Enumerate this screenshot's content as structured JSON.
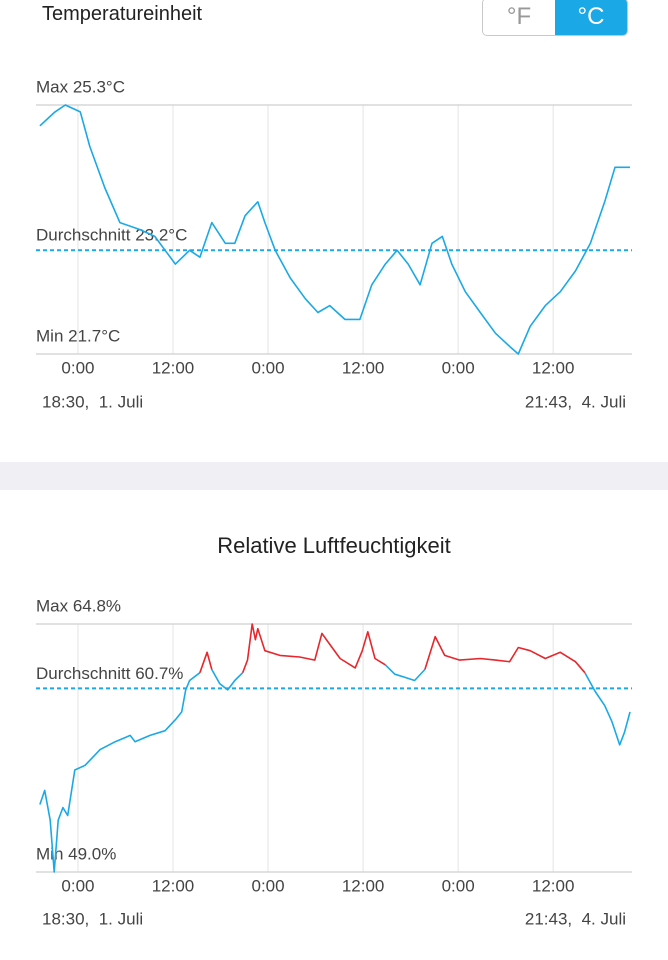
{
  "settings": {
    "label": "Temperatureinheit",
    "options": [
      "°F",
      "°C"
    ],
    "selected": "°C"
  },
  "chart_data": [
    {
      "type": "line",
      "color": "#1aa9e6",
      "x": [
        0.7,
        2.6,
        3.9,
        5.8,
        7.0,
        8.9,
        10.8,
        13.3,
        15.2,
        16.5,
        17.8,
        19.6,
        20.9,
        22.4,
        24.1,
        25.3,
        26.6,
        28.2,
        29.1,
        30.4,
        32.3,
        34.2,
        35.8,
        37.3,
        39.2,
        41.1,
        42.6,
        44.3,
        45.8,
        47.2,
        48.7,
        50.2,
        51.5,
        52.7,
        54.4,
        56.3,
        58.2,
        60.1,
        61.1,
        62.6,
        64.5,
        66.4,
        68.3,
        70.2,
        72.0,
        73.3,
        75.2
      ],
      "values": [
        25.0,
        25.2,
        25.3,
        25.2,
        24.7,
        24.1,
        23.6,
        23.5,
        23.4,
        23.2,
        23.0,
        23.2,
        23.1,
        23.6,
        23.3,
        23.3,
        23.7,
        23.9,
        23.6,
        23.2,
        22.8,
        22.5,
        22.3,
        22.4,
        22.2,
        22.2,
        22.7,
        23.0,
        23.2,
        23.0,
        22.7,
        23.3,
        23.4,
        23.0,
        22.6,
        22.3,
        22.0,
        21.8,
        21.7,
        22.1,
        22.4,
        22.6,
        22.9,
        23.3,
        23.9,
        24.4,
        24.4
      ],
      "xlim": [
        0,
        75.2
      ],
      "xticks": [
        {
          "value": 5.5,
          "label": "0:00"
        },
        {
          "value": 17.5,
          "label": "12:00"
        },
        {
          "value": 29.5,
          "label": "0:00"
        },
        {
          "value": 41.5,
          "label": "12:00"
        },
        {
          "value": 53.5,
          "label": "0:00"
        },
        {
          "value": 65.5,
          "label": "12:00"
        }
      ],
      "ylim": [
        21.7,
        25.3
      ],
      "yticks": [
        {
          "value": 25.3,
          "label": "Max 25.3°C"
        },
        {
          "value": 21.7,
          "label": "Min 21.7°C"
        }
      ],
      "average": {
        "value": 23.2,
        "label": "Durchschnitt 23.2°C"
      },
      "range_labels": [
        "18:30,  1. Juli",
        "21:43,  4. Juli"
      ]
    },
    {
      "type": "line",
      "title": "Relative Luftfeuchtigkeit",
      "x": [
        0.7,
        1.3,
        2.0,
        2.5,
        3.0,
        3.6,
        4.2,
        5.1,
        6.4,
        8.3,
        10.2,
        12.1,
        12.7,
        14.6,
        16.5,
        17.8,
        18.6,
        19.1,
        19.6,
        20.9,
        21.8,
        22.4,
        23.4,
        24.4,
        25.3,
        26.3,
        26.9,
        27.5,
        27.9,
        28.2,
        29.1,
        31.0,
        33.5,
        35.4,
        36.3,
        37.3,
        38.6,
        40.5,
        41.4,
        42.1,
        43.0,
        44.3,
        45.5,
        46.8,
        48.0,
        49.3,
        50.6,
        51.8,
        53.7,
        56.3,
        58.2,
        60.0,
        61.1,
        62.6,
        64.5,
        66.4,
        68.3,
        69.5,
        70.8,
        72.0,
        72.9,
        73.9,
        74.5,
        75.2
      ],
      "series": [
        {
          "color": "#1aa9e6",
          "values": [
            53.3,
            54.2,
            52.3,
            49.0,
            52.3,
            53.1,
            52.6,
            55.5,
            55.8,
            56.8,
            57.3,
            57.7,
            57.3,
            57.7,
            58.0,
            58.7,
            59.2,
            60.6,
            61.2,
            61.7,
            null,
            61.9,
            61.0,
            60.6,
            61.2,
            61.7,
            null,
            null,
            null,
            null,
            null,
            null,
            null,
            null,
            null,
            null,
            null,
            null,
            null,
            null,
            null,
            62.2,
            61.6,
            61.4,
            61.2,
            61.9,
            null,
            null,
            null,
            null,
            null,
            null,
            null,
            null,
            null,
            null,
            null,
            61.7,
            60.5,
            59.6,
            58.6,
            57.1,
            57.9,
            59.2
          ]
        },
        {
          "color": "#e8262b",
          "values": [
            null,
            null,
            null,
            null,
            null,
            null,
            null,
            null,
            null,
            null,
            null,
            null,
            null,
            null,
            null,
            null,
            null,
            null,
            null,
            61.7,
            63.0,
            61.9,
            null,
            null,
            null,
            61.7,
            62.5,
            64.8,
            63.8,
            64.5,
            63.1,
            62.8,
            62.7,
            62.5,
            64.2,
            63.5,
            62.6,
            62.0,
            63.1,
            64.3,
            62.6,
            62.2,
            null,
            null,
            null,
            61.9,
            64.0,
            62.8,
            62.5,
            62.6,
            62.5,
            62.4,
            63.3,
            63.1,
            62.6,
            63.0,
            62.4,
            61.7,
            null,
            null,
            null,
            null,
            null,
            null
          ]
        }
      ],
      "xlim": [
        0,
        75.2
      ],
      "xticks": [
        {
          "value": 5.5,
          "label": "0:00"
        },
        {
          "value": 17.5,
          "label": "12:00"
        },
        {
          "value": 29.5,
          "label": "0:00"
        },
        {
          "value": 41.5,
          "label": "12:00"
        },
        {
          "value": 53.5,
          "label": "0:00"
        },
        {
          "value": 65.5,
          "label": "12:00"
        }
      ],
      "ylim": [
        49.0,
        64.8
      ],
      "yticks": [
        {
          "value": 64.8,
          "label": "Max 64.8%"
        },
        {
          "value": 49.0,
          "label": "Min 49.0%"
        }
      ],
      "average": {
        "value": 60.7,
        "label": "Durchschnitt 60.7%"
      },
      "range_labels": [
        "18:30,  1. Juli",
        "21:43,  4. Juli"
      ]
    }
  ]
}
